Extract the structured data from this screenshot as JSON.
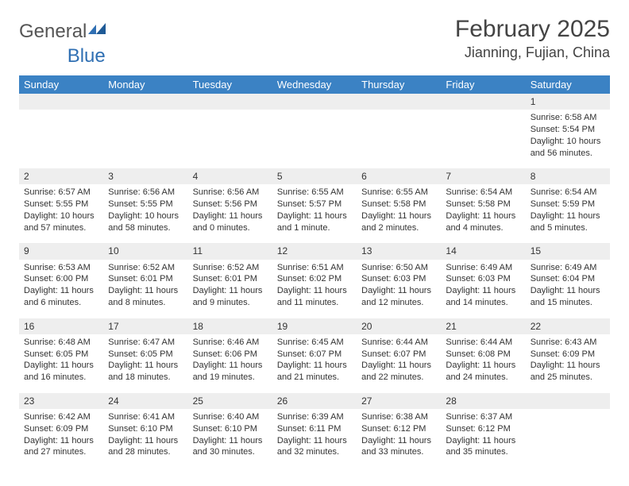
{
  "brand": {
    "part1": "General",
    "part2": "Blue"
  },
  "title": "February 2025",
  "location": "Jianning, Fujian, China",
  "colors": {
    "header_bg": "#3b82c4",
    "header_text": "#ffffff",
    "daynum_bg": "#eeeeee",
    "page_bg": "#ffffff",
    "text": "#333333",
    "brand_blue": "#2f6fb3"
  },
  "dayHeaders": [
    "Sunday",
    "Monday",
    "Tuesday",
    "Wednesday",
    "Thursday",
    "Friday",
    "Saturday"
  ],
  "weeks": [
    {
      "nums": [
        "",
        "",
        "",
        "",
        "",
        "",
        "1"
      ],
      "details": [
        "",
        "",
        "",
        "",
        "",
        "",
        "Sunrise: 6:58 AM\nSunset: 5:54 PM\nDaylight: 10 hours and 56 minutes."
      ]
    },
    {
      "nums": [
        "2",
        "3",
        "4",
        "5",
        "6",
        "7",
        "8"
      ],
      "details": [
        "Sunrise: 6:57 AM\nSunset: 5:55 PM\nDaylight: 10 hours and 57 minutes.",
        "Sunrise: 6:56 AM\nSunset: 5:55 PM\nDaylight: 10 hours and 58 minutes.",
        "Sunrise: 6:56 AM\nSunset: 5:56 PM\nDaylight: 11 hours and 0 minutes.",
        "Sunrise: 6:55 AM\nSunset: 5:57 PM\nDaylight: 11 hours and 1 minute.",
        "Sunrise: 6:55 AM\nSunset: 5:58 PM\nDaylight: 11 hours and 2 minutes.",
        "Sunrise: 6:54 AM\nSunset: 5:58 PM\nDaylight: 11 hours and 4 minutes.",
        "Sunrise: 6:54 AM\nSunset: 5:59 PM\nDaylight: 11 hours and 5 minutes."
      ]
    },
    {
      "nums": [
        "9",
        "10",
        "11",
        "12",
        "13",
        "14",
        "15"
      ],
      "details": [
        "Sunrise: 6:53 AM\nSunset: 6:00 PM\nDaylight: 11 hours and 6 minutes.",
        "Sunrise: 6:52 AM\nSunset: 6:01 PM\nDaylight: 11 hours and 8 minutes.",
        "Sunrise: 6:52 AM\nSunset: 6:01 PM\nDaylight: 11 hours and 9 minutes.",
        "Sunrise: 6:51 AM\nSunset: 6:02 PM\nDaylight: 11 hours and 11 minutes.",
        "Sunrise: 6:50 AM\nSunset: 6:03 PM\nDaylight: 11 hours and 12 minutes.",
        "Sunrise: 6:49 AM\nSunset: 6:03 PM\nDaylight: 11 hours and 14 minutes.",
        "Sunrise: 6:49 AM\nSunset: 6:04 PM\nDaylight: 11 hours and 15 minutes."
      ]
    },
    {
      "nums": [
        "16",
        "17",
        "18",
        "19",
        "20",
        "21",
        "22"
      ],
      "details": [
        "Sunrise: 6:48 AM\nSunset: 6:05 PM\nDaylight: 11 hours and 16 minutes.",
        "Sunrise: 6:47 AM\nSunset: 6:05 PM\nDaylight: 11 hours and 18 minutes.",
        "Sunrise: 6:46 AM\nSunset: 6:06 PM\nDaylight: 11 hours and 19 minutes.",
        "Sunrise: 6:45 AM\nSunset: 6:07 PM\nDaylight: 11 hours and 21 minutes.",
        "Sunrise: 6:44 AM\nSunset: 6:07 PM\nDaylight: 11 hours and 22 minutes.",
        "Sunrise: 6:44 AM\nSunset: 6:08 PM\nDaylight: 11 hours and 24 minutes.",
        "Sunrise: 6:43 AM\nSunset: 6:09 PM\nDaylight: 11 hours and 25 minutes."
      ]
    },
    {
      "nums": [
        "23",
        "24",
        "25",
        "26",
        "27",
        "28",
        ""
      ],
      "details": [
        "Sunrise: 6:42 AM\nSunset: 6:09 PM\nDaylight: 11 hours and 27 minutes.",
        "Sunrise: 6:41 AM\nSunset: 6:10 PM\nDaylight: 11 hours and 28 minutes.",
        "Sunrise: 6:40 AM\nSunset: 6:10 PM\nDaylight: 11 hours and 30 minutes.",
        "Sunrise: 6:39 AM\nSunset: 6:11 PM\nDaylight: 11 hours and 32 minutes.",
        "Sunrise: 6:38 AM\nSunset: 6:12 PM\nDaylight: 11 hours and 33 minutes.",
        "Sunrise: 6:37 AM\nSunset: 6:12 PM\nDaylight: 11 hours and 35 minutes.",
        ""
      ]
    }
  ]
}
